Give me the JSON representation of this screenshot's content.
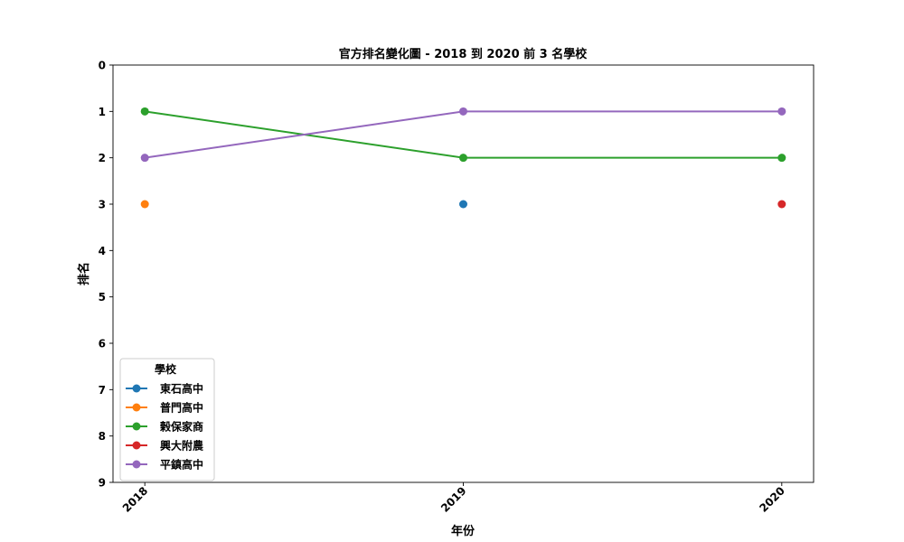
{
  "chart_data": {
    "type": "line",
    "title": "官方排名變化圖 - 2018 到 2020 前 3 名學校",
    "xlabel": "年份",
    "ylabel": "排名",
    "x": [
      "2018",
      "2019",
      "2020"
    ],
    "y_ticks": [
      "0",
      "1",
      "2",
      "3",
      "4",
      "5",
      "6",
      "7",
      "8",
      "9"
    ],
    "ylim": [
      9,
      0
    ],
    "y_inverted": true,
    "grid": false,
    "legend": {
      "title": "學校",
      "placement": "lower-left"
    },
    "series": [
      {
        "name": "東石高中",
        "color": "#1f77b4",
        "values": [
          null,
          3,
          null
        ]
      },
      {
        "name": "普門高中",
        "color": "#ff7f0e",
        "values": [
          3,
          null,
          null
        ]
      },
      {
        "name": "榖保家商",
        "color": "#2ca02c",
        "values": [
          1,
          2,
          2
        ]
      },
      {
        "name": "興大附農",
        "color": "#d62728",
        "values": [
          null,
          null,
          3
        ]
      },
      {
        "name": "平鎮高中",
        "color": "#9467bd",
        "values": [
          2,
          1,
          1
        ]
      }
    ]
  }
}
